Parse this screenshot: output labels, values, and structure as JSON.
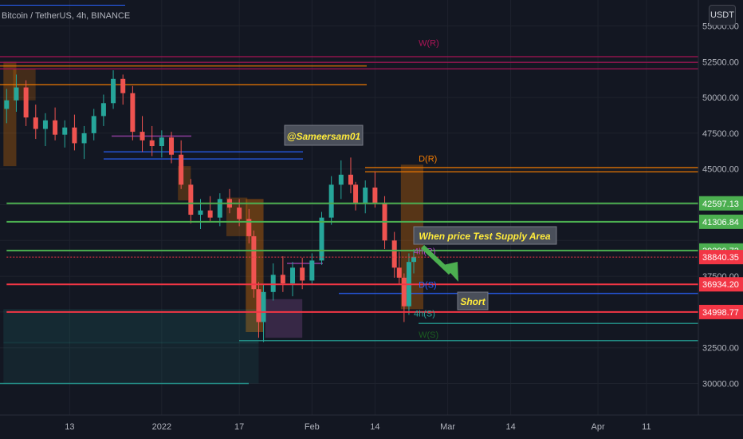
{
  "header": {
    "symbol_title": "Bitcoin / TetherUS, 4h, BINANCE",
    "currency_button": "USDT"
  },
  "colors": {
    "background": "#131722",
    "up_candle": "#26a69a",
    "down_candle": "#ef5350",
    "axis_text": "#b2b5be"
  },
  "annotations": {
    "watermark": "@Sameersam01",
    "supply_note": "When price Test Supply Area",
    "short_label": "Short"
  },
  "chart_data": {
    "type": "candlestick",
    "title": "Bitcoin / TetherUS, 4h, BINANCE",
    "y_axis": {
      "range": [
        28500,
        55500
      ],
      "ticks": [
        30000,
        32500,
        37500,
        45000,
        47500,
        50000,
        52500,
        55000
      ],
      "tick_labels": [
        "30000.00",
        "32500.00",
        "37500.00",
        "45000.00",
        "47500.00",
        "50000.00",
        "52500.00",
        "55000.00"
      ]
    },
    "x_axis": {
      "ticks": [
        {
          "label": "13",
          "day": 13
        },
        {
          "label": "2022",
          "day": 32
        },
        {
          "label": "17",
          "day": 48
        },
        {
          "label": "Feb",
          "day": 63
        },
        {
          "label": "14",
          "day": 76
        },
        {
          "label": "Mar",
          "day": 91
        },
        {
          "label": "14",
          "day": 104
        },
        {
          "label": "Apr",
          "day": 122
        },
        {
          "label": "11",
          "day": 132
        }
      ]
    },
    "price_levels": [
      {
        "label": "42597.13",
        "value": 42597.13,
        "color": "#4caf50",
        "line_start_day": 0
      },
      {
        "label": "41306.84",
        "value": 41306.84,
        "color": "#4caf50",
        "line_start_day": 0
      },
      {
        "label": "39299.73",
        "value": 39299.73,
        "color": "#4caf50",
        "line_start_day": 0
      },
      {
        "label": "38840.35",
        "value": 38840.35,
        "color": "#f23645",
        "line_start_day": 0,
        "dotted": true
      },
      {
        "label": "36934.20",
        "value": 36934.2,
        "color": "#f23645",
        "line_start_day": 0
      },
      {
        "label": "34998.77",
        "value": 34998.77,
        "color": "#f23645",
        "line_start_day": 0
      }
    ],
    "level_labels": [
      {
        "label": "W(R)",
        "value": 53600,
        "day": 85,
        "color": "#ad1457"
      },
      {
        "label": "D(R)",
        "value": 45500,
        "day": 85,
        "color": "#f57c00"
      },
      {
        "label": "4h(R)",
        "value": 39050,
        "day": 84,
        "color": "#ab47bc"
      },
      {
        "label": "D(S)",
        "value": 36700,
        "day": 85,
        "color": "#2962ff"
      },
      {
        "label": "4h(S)",
        "value": 34700,
        "day": 84,
        "color": "#26a69a"
      },
      {
        "label": "W(S)",
        "value": 33200,
        "day": 85,
        "color": "#1b5e20"
      }
    ],
    "ohlc": [
      {
        "day": 0,
        "o": 49200,
        "h": 50600,
        "l": 48200,
        "c": 49800
      },
      {
        "day": 2,
        "o": 49800,
        "h": 51600,
        "l": 49000,
        "c": 50700
      },
      {
        "day": 4,
        "o": 50700,
        "h": 51200,
        "l": 48000,
        "c": 48600
      },
      {
        "day": 6,
        "o": 48600,
        "h": 49500,
        "l": 47100,
        "c": 47800
      },
      {
        "day": 8,
        "o": 47800,
        "h": 48900,
        "l": 46600,
        "c": 48400
      },
      {
        "day": 10,
        "o": 48400,
        "h": 49300,
        "l": 47000,
        "c": 47400
      },
      {
        "day": 12,
        "o": 47400,
        "h": 48400,
        "l": 46500,
        "c": 47900
      },
      {
        "day": 14,
        "o": 47900,
        "h": 48800,
        "l": 46300,
        "c": 46800
      },
      {
        "day": 16,
        "o": 46800,
        "h": 48000,
        "l": 45700,
        "c": 47500
      },
      {
        "day": 18,
        "o": 47500,
        "h": 49200,
        "l": 47000,
        "c": 48700
      },
      {
        "day": 20,
        "o": 48700,
        "h": 50200,
        "l": 48000,
        "c": 49600
      },
      {
        "day": 22,
        "o": 49600,
        "h": 51900,
        "l": 49200,
        "c": 51300
      },
      {
        "day": 24,
        "o": 51300,
        "h": 51600,
        "l": 49500,
        "c": 50300
      },
      {
        "day": 26,
        "o": 50300,
        "h": 50800,
        "l": 47000,
        "c": 47600
      },
      {
        "day": 28,
        "o": 47600,
        "h": 48700,
        "l": 46200,
        "c": 47000
      },
      {
        "day": 30,
        "o": 47000,
        "h": 48000,
        "l": 45900,
        "c": 46600
      },
      {
        "day": 32,
        "o": 46600,
        "h": 47700,
        "l": 45800,
        "c": 47200
      },
      {
        "day": 34,
        "o": 47200,
        "h": 47600,
        "l": 45400,
        "c": 46000
      },
      {
        "day": 36,
        "o": 46000,
        "h": 47000,
        "l": 43600,
        "c": 43900
      },
      {
        "day": 38,
        "o": 43900,
        "h": 44300,
        "l": 41200,
        "c": 41800
      },
      {
        "day": 40,
        "o": 41800,
        "h": 42900,
        "l": 40800,
        "c": 42100
      },
      {
        "day": 42,
        "o": 42100,
        "h": 43100,
        "l": 41300,
        "c": 41600
      },
      {
        "day": 44,
        "o": 41600,
        "h": 43300,
        "l": 41000,
        "c": 42900
      },
      {
        "day": 46,
        "o": 42900,
        "h": 43600,
        "l": 41900,
        "c": 42300
      },
      {
        "day": 48,
        "o": 42300,
        "h": 42900,
        "l": 41000,
        "c": 41500
      },
      {
        "day": 50,
        "o": 41500,
        "h": 42200,
        "l": 39800,
        "c": 40300
      },
      {
        "day": 51,
        "o": 40300,
        "h": 40700,
        "l": 36000,
        "c": 36600
      },
      {
        "day": 52,
        "o": 36600,
        "h": 37100,
        "l": 33200,
        "c": 34300
      },
      {
        "day": 53,
        "o": 34300,
        "h": 36900,
        "l": 32900,
        "c": 36400
      },
      {
        "day": 55,
        "o": 36400,
        "h": 38400,
        "l": 35800,
        "c": 37600
      },
      {
        "day": 57,
        "o": 37600,
        "h": 38900,
        "l": 36400,
        "c": 37000
      },
      {
        "day": 59,
        "o": 37000,
        "h": 38500,
        "l": 36100,
        "c": 38100
      },
      {
        "day": 61,
        "o": 38100,
        "h": 38800,
        "l": 36600,
        "c": 37200
      },
      {
        "day": 63,
        "o": 37200,
        "h": 39100,
        "l": 36900,
        "c": 38600
      },
      {
        "day": 65,
        "o": 38600,
        "h": 42000,
        "l": 38300,
        "c": 41600
      },
      {
        "day": 67,
        "o": 41600,
        "h": 44500,
        "l": 41100,
        "c": 43900
      },
      {
        "day": 69,
        "o": 43900,
        "h": 45600,
        "l": 42900,
        "c": 44600
      },
      {
        "day": 71,
        "o": 44600,
        "h": 45800,
        "l": 43300,
        "c": 43900
      },
      {
        "day": 72,
        "o": 43900,
        "h": 44100,
        "l": 42100,
        "c": 42600
      },
      {
        "day": 74,
        "o": 42600,
        "h": 44200,
        "l": 41900,
        "c": 43700
      },
      {
        "day": 76,
        "o": 43700,
        "h": 44800,
        "l": 42300,
        "c": 42600
      },
      {
        "day": 78,
        "o": 42600,
        "h": 43100,
        "l": 39400,
        "c": 40000
      },
      {
        "day": 80,
        "o": 40000,
        "h": 40600,
        "l": 37400,
        "c": 38100
      },
      {
        "day": 81,
        "o": 38100,
        "h": 39200,
        "l": 36900,
        "c": 37400
      },
      {
        "day": 82,
        "o": 37400,
        "h": 37700,
        "l": 34300,
        "c": 35400
      },
      {
        "day": 83,
        "o": 35400,
        "h": 39100,
        "l": 34800,
        "c": 38500
      },
      {
        "day": 84,
        "o": 38500,
        "h": 39400,
        "l": 37700,
        "c": 38840
      }
    ]
  }
}
